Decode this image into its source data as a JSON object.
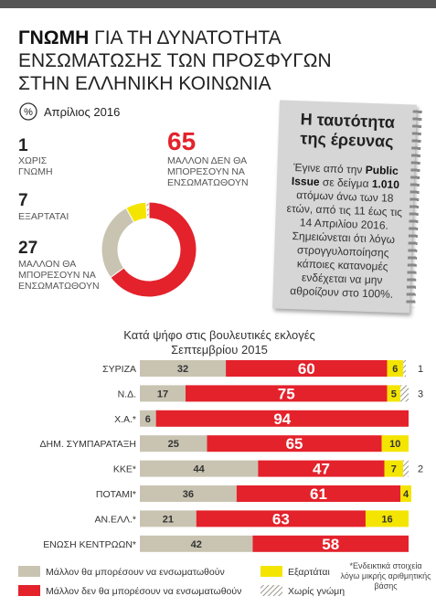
{
  "header": {
    "title_bold": "ΓΝΩΜΗ",
    "title_lines": [
      "ΓΙΑ ΤΗ ΔΥΝΑΤΟΤΗΤΑ",
      "ΕΝΣΩΜΑΤΩΣΗΣ ΤΩΝ ΠΡΟΣΦΥΓΩΝ",
      "ΣΤΗΝ ΕΛΛΗΝΙΚΗ ΚΟΙΝΩΝΙΑ"
    ],
    "icon": "%",
    "date": "Απρίλιος 2016"
  },
  "note": {
    "title": "Η ταυτότητα της έρευνας",
    "body": [
      {
        "text": "Έγινε από την ",
        "bold": false
      },
      {
        "text": "Public Issue",
        "bold": true
      },
      {
        "text": " σε δείγμα ",
        "bold": false
      },
      {
        "text": "1.010",
        "bold": true
      },
      {
        "text": " ατόμων άνω των 18 ετών, από τις 11 έως τις 14 Απριλίου 2016. Σημειώνεται ότι λόγω στρογγυλοποίησης κάποιες κατανομές ενδέχεται να μην αθροίζουν στο 100%.",
        "bold": false
      }
    ]
  },
  "footnote": "*Ενδεικτικά στοιχεία λόγω μικρής αριθμητικής βάσης",
  "chart_data": [
    {
      "type": "pie",
      "donut": true,
      "categories": [
        "ΜΑΛΛΟΝ ΔΕΝ ΘΑ ΜΠΟΡΕΣΟΥΝ ΝΑ ΕΝΣΩΜΑΤΩΘΟΥΝ",
        "ΜΑΛΛΟΝ ΘΑ ΜΠΟΡΕΣΟΥΝ ΝΑ ΕΝΣΩΜΑΤΩΘΟΥΝ",
        "ΕΞΑΡΤΑΤΑΙ",
        "ΧΩΡΙΣ ΓΝΩΜΗ"
      ],
      "values": [
        65,
        27,
        7,
        1
      ],
      "colors": [
        "#e3222b",
        "#c9c4b2",
        "#f4e500",
        "#9a968c"
      ],
      "hatched": [
        false,
        false,
        false,
        true
      ]
    },
    {
      "type": "bar",
      "orientation": "horizontal",
      "stacked": true,
      "title": "Κατά ψήφο στις βουλευτικές εκλογές Σεπτεμβρίου 2015",
      "categories": [
        "ΣΥΡΙΖΑ",
        "Ν.Δ.",
        "Χ.Α.*",
        "ΔΗΜ. ΣΥΜΠΑΡΑΤΑΞΗ",
        "ΚΚΕ*",
        "ΠΟΤΑΜΙ*",
        "ΑΝ.ΕΛΛ.*",
        "ΕΝΩΣΗ ΚΕΝΤΡΩΩΝ*"
      ],
      "xlim": [
        0,
        100
      ],
      "series": [
        {
          "name": "Μάλλον θα μπορέσουν να ενσωματωθούν",
          "color": "#c9c4b2",
          "values": [
            32,
            17,
            6,
            25,
            44,
            36,
            21,
            42
          ]
        },
        {
          "name": "Μάλλον δεν θα μπορέσουν να ενσωματωθούν",
          "color": "#e3222b",
          "values": [
            60,
            75,
            94,
            65,
            47,
            61,
            63,
            58
          ]
        },
        {
          "name": "Εξαρτάται",
          "color": "#f4e500",
          "values": [
            6,
            5,
            null,
            10,
            7,
            4,
            16,
            null
          ]
        },
        {
          "name": "Χωρίς γνώμη",
          "color": "#9a968c",
          "hatched": true,
          "values": [
            1,
            3,
            null,
            null,
            2,
            null,
            null,
            null
          ]
        }
      ]
    }
  ]
}
